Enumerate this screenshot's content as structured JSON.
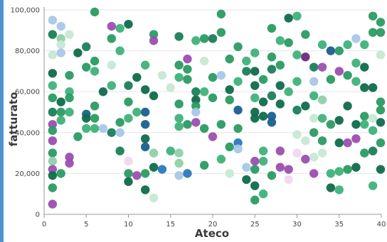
{
  "chart_data": {
    "type": "scatter",
    "title": "",
    "xlabel": "Ateco",
    "ylabel": "fatturato",
    "xlim": [
      0,
      40
    ],
    "ylim": [
      0,
      100000
    ],
    "x_ticks": [
      "0",
      "5",
      "10",
      "15",
      "20",
      "25",
      "30",
      "35",
      "40"
    ],
    "y_ticks": [
      "0",
      "20,000",
      "40,000",
      "60,000",
      "80,000",
      "100,000"
    ],
    "grid": "horizontal",
    "legend": "none",
    "points": [
      {
        "x": 1,
        "y": 95000,
        "color": "#a9c7e8"
      },
      {
        "x": 1,
        "y": 88000,
        "color": "#1a7f5a"
      },
      {
        "x": 1,
        "y": 78000,
        "color": "#c7e8d4"
      },
      {
        "x": 1,
        "y": 69000,
        "color": "#0f6b4a"
      },
      {
        "x": 1,
        "y": 63000,
        "color": "#3fb27a"
      },
      {
        "x": 1,
        "y": 57000,
        "color": "#2a9b62"
      },
      {
        "x": 1,
        "y": 50000,
        "color": "#1a7f5a"
      },
      {
        "x": 1,
        "y": 44000,
        "color": "#9b4fb0"
      },
      {
        "x": 1,
        "y": 41000,
        "color": "#2a9b62"
      },
      {
        "x": 1,
        "y": 36000,
        "color": "#9b4fb0"
      },
      {
        "x": 1,
        "y": 30000,
        "color": "#2a9b62"
      },
      {
        "x": 1,
        "y": 26000,
        "color": "#8fd1a8"
      },
      {
        "x": 1,
        "y": 22000,
        "color": "#9b4fb0"
      },
      {
        "x": 1,
        "y": 19000,
        "color": "#0f6b4a"
      },
      {
        "x": 1,
        "y": 13000,
        "color": "#2a9b62"
      },
      {
        "x": 1,
        "y": 5000,
        "color": "#9b4fb0"
      },
      {
        "x": 2,
        "y": 92000,
        "color": "#a9c7e8"
      },
      {
        "x": 2,
        "y": 86000,
        "color": "#8fd1a8"
      },
      {
        "x": 2,
        "y": 83000,
        "color": "#c7e8d4"
      },
      {
        "x": 2,
        "y": 79000,
        "color": "#a9c7e8"
      },
      {
        "x": 2,
        "y": 55000,
        "color": "#0f6b4a"
      },
      {
        "x": 2,
        "y": 50000,
        "color": "#2a9b62"
      },
      {
        "x": 2,
        "y": 46000,
        "color": "#3fb27a"
      },
      {
        "x": 2,
        "y": 20000,
        "color": "#2a9b62"
      },
      {
        "x": 3,
        "y": 88000,
        "color": "#c7e8d4"
      },
      {
        "x": 3,
        "y": 68000,
        "color": "#2a9b62"
      },
      {
        "x": 3,
        "y": 60000,
        "color": "#3fb27a"
      },
      {
        "x": 3,
        "y": 57000,
        "color": "#2a9b62"
      },
      {
        "x": 3,
        "y": 50000,
        "color": "#3fb27a"
      },
      {
        "x": 3,
        "y": 28000,
        "color": "#9b4fb0"
      },
      {
        "x": 3,
        "y": 25000,
        "color": "#9b4fb0"
      },
      {
        "x": 4,
        "y": 79000,
        "color": "#0f6b4a"
      },
      {
        "x": 4,
        "y": 38000,
        "color": "#2a9b62"
      },
      {
        "x": 5,
        "y": 82000,
        "color": "#1a7f5a"
      },
      {
        "x": 5,
        "y": 72000,
        "color": "#2a9b62"
      },
      {
        "x": 5,
        "y": 49000,
        "color": "#1a5f8f"
      },
      {
        "x": 5,
        "y": 47000,
        "color": "#0f6b4a"
      },
      {
        "x": 5,
        "y": 42000,
        "color": "#3fb27a"
      },
      {
        "x": 6,
        "y": 99000,
        "color": "#2a9b62"
      },
      {
        "x": 6,
        "y": 75000,
        "color": "#2a9b62"
      },
      {
        "x": 6,
        "y": 70000,
        "color": "#3fb27a"
      },
      {
        "x": 6,
        "y": 53000,
        "color": "#2a9b62"
      },
      {
        "x": 6,
        "y": 47000,
        "color": "#2a9b62"
      },
      {
        "x": 6,
        "y": 42000,
        "color": "#3fb27a"
      },
      {
        "x": 7,
        "y": 60000,
        "color": "#0f6b4a"
      },
      {
        "x": 7,
        "y": 42000,
        "color": "#a9c7e8"
      },
      {
        "x": 8,
        "y": 92000,
        "color": "#9b4fb0"
      },
      {
        "x": 8,
        "y": 86000,
        "color": "#2a9b62"
      },
      {
        "x": 8,
        "y": 73000,
        "color": "#c7e8d4"
      },
      {
        "x": 8,
        "y": 63000,
        "color": "#3fb27a"
      },
      {
        "x": 8,
        "y": 40000,
        "color": "#1a7f5a"
      },
      {
        "x": 9,
        "y": 91000,
        "color": "#3fb27a"
      },
      {
        "x": 9,
        "y": 80000,
        "color": "#3fb27a"
      },
      {
        "x": 9,
        "y": 45000,
        "color": "#2a9b62"
      },
      {
        "x": 9,
        "y": 40000,
        "color": "#a9c7e8"
      },
      {
        "x": 9,
        "y": 31000,
        "color": "#1a7f5a"
      },
      {
        "x": 10,
        "y": 93000,
        "color": "#0f6b4a"
      },
      {
        "x": 10,
        "y": 63000,
        "color": "#1a7f5a"
      },
      {
        "x": 10,
        "y": 55000,
        "color": "#2a9b62"
      },
      {
        "x": 10,
        "y": 47000,
        "color": "#3fb27a"
      },
      {
        "x": 10,
        "y": 26000,
        "color": "#f0d8ee"
      },
      {
        "x": 10,
        "y": 20000,
        "color": "#2a9b62"
      },
      {
        "x": 10,
        "y": 16000,
        "color": "#0f6b4a"
      },
      {
        "x": 11,
        "y": 67000,
        "color": "#0f6b4a"
      },
      {
        "x": 11,
        "y": 50000,
        "color": "#3fb27a"
      },
      {
        "x": 11,
        "y": 19000,
        "color": "#9b4fb0"
      },
      {
        "x": 12,
        "y": 73000,
        "color": "#3fb27a"
      },
      {
        "x": 12,
        "y": 61000,
        "color": "#0f6b4a"
      },
      {
        "x": 12,
        "y": 50000,
        "color": "#1a5f8f"
      },
      {
        "x": 12,
        "y": 44000,
        "color": "#1a5f8f"
      },
      {
        "x": 12,
        "y": 37000,
        "color": "#0f6b4a"
      },
      {
        "x": 12,
        "y": 33000,
        "color": "#1a5f8f"
      },
      {
        "x": 12,
        "y": 20000,
        "color": "#2a9b62"
      },
      {
        "x": 12,
        "y": 12000,
        "color": "#0f6b4a"
      },
      {
        "x": 13,
        "y": 88000,
        "color": "#2a9b62"
      },
      {
        "x": 13,
        "y": 85000,
        "color": "#9b4fb0"
      },
      {
        "x": 13,
        "y": 58000,
        "color": "#0f6b4a"
      },
      {
        "x": 13,
        "y": 30000,
        "color": "#8fd1a8"
      },
      {
        "x": 13,
        "y": 23000,
        "color": "#0f6b4a"
      },
      {
        "x": 13,
        "y": 8000,
        "color": "#c7e8d4"
      },
      {
        "x": 14,
        "y": 68000,
        "color": "#c7e8d4"
      },
      {
        "x": 14,
        "y": 22000,
        "color": "#2a78c0"
      },
      {
        "x": 15,
        "y": 62000,
        "color": "#c7e8d4"
      },
      {
        "x": 15,
        "y": 31000,
        "color": "#3fb27a"
      },
      {
        "x": 16,
        "y": 87000,
        "color": "#1a7f5a"
      },
      {
        "x": 16,
        "y": 73000,
        "color": "#2a9b62"
      },
      {
        "x": 16,
        "y": 67000,
        "color": "#3fb27a"
      },
      {
        "x": 16,
        "y": 54000,
        "color": "#2a9b62"
      },
      {
        "x": 16,
        "y": 47000,
        "color": "#3fb27a"
      },
      {
        "x": 16,
        "y": 43000,
        "color": "#3fb27a"
      },
      {
        "x": 16,
        "y": 30000,
        "color": "#8fd1a8"
      },
      {
        "x": 16,
        "y": 25000,
        "color": "#8fd1a8"
      },
      {
        "x": 16,
        "y": 19000,
        "color": "#a9c7e8"
      },
      {
        "x": 17,
        "y": 76000,
        "color": "#9b4fb0"
      },
      {
        "x": 17,
        "y": 71000,
        "color": "#2a9b62"
      },
      {
        "x": 17,
        "y": 66000,
        "color": "#2a9b62"
      },
      {
        "x": 17,
        "y": 44000,
        "color": "#2a9b62"
      },
      {
        "x": 17,
        "y": 20000,
        "color": "#2a78c0"
      },
      {
        "x": 18,
        "y": 85000,
        "color": "#3fb27a"
      },
      {
        "x": 18,
        "y": 60000,
        "color": "#1a7f5a"
      },
      {
        "x": 18,
        "y": 56000,
        "color": "#0f6b4a"
      },
      {
        "x": 18,
        "y": 53000,
        "color": "#2a9b62"
      },
      {
        "x": 18,
        "y": 50000,
        "color": "#a9c7e8"
      },
      {
        "x": 18,
        "y": 45000,
        "color": "#9b4fb0"
      },
      {
        "x": 19,
        "y": 86000,
        "color": "#2a9b62"
      },
      {
        "x": 19,
        "y": 75000,
        "color": "#c7e8d4"
      },
      {
        "x": 19,
        "y": 60000,
        "color": "#3fb27a"
      },
      {
        "x": 19,
        "y": 42000,
        "color": "#2a9b62"
      },
      {
        "x": 19,
        "y": 24000,
        "color": "#2a9b62"
      },
      {
        "x": 20,
        "y": 86000,
        "color": "#1a7f5a"
      },
      {
        "x": 20,
        "y": 67000,
        "color": "#2a9b62"
      },
      {
        "x": 20,
        "y": 57000,
        "color": "#2a9b62"
      },
      {
        "x": 20,
        "y": 38000,
        "color": "#9b4fb0"
      },
      {
        "x": 21,
        "y": 98000,
        "color": "#2a9b62"
      },
      {
        "x": 21,
        "y": 89000,
        "color": "#2a9b62"
      },
      {
        "x": 21,
        "y": 68000,
        "color": "#a9c7e8"
      },
      {
        "x": 21,
        "y": 44000,
        "color": "#2a9b62"
      },
      {
        "x": 21,
        "y": 27000,
        "color": "#3fb27a"
      },
      {
        "x": 22,
        "y": 76000,
        "color": "#2a9b62"
      },
      {
        "x": 22,
        "y": 61000,
        "color": "#0f6b4a"
      },
      {
        "x": 22,
        "y": 56000,
        "color": "#2a9b62"
      },
      {
        "x": 22,
        "y": 33000,
        "color": "#2a9b62"
      },
      {
        "x": 22,
        "y": 20000,
        "color": "#c7e8d4"
      },
      {
        "x": 23,
        "y": 82000,
        "color": "#2a9b62"
      },
      {
        "x": 23,
        "y": 65000,
        "color": "#3fb27a"
      },
      {
        "x": 23,
        "y": 51000,
        "color": "#1a5f8f"
      },
      {
        "x": 23,
        "y": 42000,
        "color": "#2a9b62"
      },
      {
        "x": 23,
        "y": 35000,
        "color": "#2a78c0"
      },
      {
        "x": 23,
        "y": 32000,
        "color": "#a9c7e8"
      },
      {
        "x": 24,
        "y": 75000,
        "color": "#3fb27a"
      },
      {
        "x": 24,
        "y": 70000,
        "color": "#1a7f5a"
      },
      {
        "x": 24,
        "y": 23000,
        "color": "#a9c7e8"
      },
      {
        "x": 24,
        "y": 17000,
        "color": "#0f6b4a"
      },
      {
        "x": 25,
        "y": 79000,
        "color": "#3fb27a"
      },
      {
        "x": 25,
        "y": 70000,
        "color": "#0f6b4a"
      },
      {
        "x": 25,
        "y": 63000,
        "color": "#0f6b4a"
      },
      {
        "x": 25,
        "y": 57000,
        "color": "#3fb27a"
      },
      {
        "x": 25,
        "y": 50000,
        "color": "#0f6b4a"
      },
      {
        "x": 25,
        "y": 47000,
        "color": "#0f6b4a"
      },
      {
        "x": 25,
        "y": 26000,
        "color": "#9b4fb0"
      },
      {
        "x": 25,
        "y": 22000,
        "color": "#2a9b62"
      },
      {
        "x": 25,
        "y": 14000,
        "color": "#0f6b4a"
      },
      {
        "x": 25,
        "y": 7000,
        "color": "#2a9b62"
      },
      {
        "x": 26,
        "y": 66000,
        "color": "#2a9b62"
      },
      {
        "x": 26,
        "y": 55000,
        "color": "#0f6b4a"
      },
      {
        "x": 26,
        "y": 48000,
        "color": "#0f6b4a"
      },
      {
        "x": 26,
        "y": 31000,
        "color": "#3fb27a"
      },
      {
        "x": 26,
        "y": 26000,
        "color": "#3fb27a"
      },
      {
        "x": 26,
        "y": 10000,
        "color": "#3fb27a"
      },
      {
        "x": 27,
        "y": 91000,
        "color": "#2a9b62"
      },
      {
        "x": 27,
        "y": 77000,
        "color": "#2a9b62"
      },
      {
        "x": 27,
        "y": 71000,
        "color": "#1a7f5a"
      },
      {
        "x": 27,
        "y": 58000,
        "color": "#1a7f5a"
      },
      {
        "x": 27,
        "y": 48000,
        "color": "#1a5f8f"
      },
      {
        "x": 27,
        "y": 45000,
        "color": "#1a5f8f"
      },
      {
        "x": 27,
        "y": 19000,
        "color": "#2a9b62"
      },
      {
        "x": 28,
        "y": 85000,
        "color": "#3fb27a"
      },
      {
        "x": 28,
        "y": 73000,
        "color": "#2a9b62"
      },
      {
        "x": 28,
        "y": 63000,
        "color": "#0f6b4a"
      },
      {
        "x": 28,
        "y": 54000,
        "color": "#0f6b4a"
      },
      {
        "x": 28,
        "y": 31000,
        "color": "#9b4fb0"
      },
      {
        "x": 28,
        "y": 23000,
        "color": "#9b4fb0"
      },
      {
        "x": 29,
        "y": 96000,
        "color": "#0f6b4a"
      },
      {
        "x": 29,
        "y": 84000,
        "color": "#2a9b62"
      },
      {
        "x": 29,
        "y": 60000,
        "color": "#3fb27a"
      },
      {
        "x": 29,
        "y": 22000,
        "color": "#9b4fb0"
      },
      {
        "x": 29,
        "y": 17000,
        "color": "#f0d8ee"
      },
      {
        "x": 30,
        "y": 97000,
        "color": "#3fb27a"
      },
      {
        "x": 30,
        "y": 78000,
        "color": "#3fb27a"
      },
      {
        "x": 30,
        "y": 65000,
        "color": "#3fb27a"
      },
      {
        "x": 30,
        "y": 51000,
        "color": "#1a7f5a"
      },
      {
        "x": 30,
        "y": 39000,
        "color": "#c7e8d4"
      },
      {
        "x": 30,
        "y": 30000,
        "color": "#f0d8ee"
      },
      {
        "x": 31,
        "y": 88000,
        "color": "#2a9b62"
      },
      {
        "x": 31,
        "y": 77000,
        "color": "#6a2a80"
      },
      {
        "x": 31,
        "y": 53000,
        "color": "#0f6b4a"
      },
      {
        "x": 31,
        "y": 36000,
        "color": "#c7e8d4"
      },
      {
        "x": 31,
        "y": 27000,
        "color": "#9b4fb0"
      },
      {
        "x": 32,
        "y": 72000,
        "color": "#1a7f5a"
      },
      {
        "x": 32,
        "y": 65000,
        "color": "#a9c7e8"
      },
      {
        "x": 32,
        "y": 58000,
        "color": "#3fb27a"
      },
      {
        "x": 32,
        "y": 47000,
        "color": "#c7e8d4"
      },
      {
        "x": 32,
        "y": 40000,
        "color": "#2a9b62"
      },
      {
        "x": 32,
        "y": 28000,
        "color": "#c7e8d4"
      },
      {
        "x": 32,
        "y": 20000,
        "color": "#9b4fb0"
      },
      {
        "x": 33,
        "y": 83000,
        "color": "#3fb27a"
      },
      {
        "x": 33,
        "y": 72000,
        "color": "#9b4fb0"
      },
      {
        "x": 33,
        "y": 56000,
        "color": "#8fd1a8"
      },
      {
        "x": 33,
        "y": 47000,
        "color": "#3fb27a"
      },
      {
        "x": 33,
        "y": 36000,
        "color": "#2a9b62"
      },
      {
        "x": 33,
        "y": 30000,
        "color": "#c7e8d4"
      },
      {
        "x": 34,
        "y": 80000,
        "color": "#1a5f8f"
      },
      {
        "x": 34,
        "y": 66000,
        "color": "#2a9b62"
      },
      {
        "x": 34,
        "y": 44000,
        "color": "#2a9b62"
      },
      {
        "x": 34,
        "y": 20000,
        "color": "#3fb27a"
      },
      {
        "x": 34,
        "y": 13000,
        "color": "#0f6b4a"
      },
      {
        "x": 35,
        "y": 80000,
        "color": "#2a9b62"
      },
      {
        "x": 35,
        "y": 70000,
        "color": "#9b4fb0"
      },
      {
        "x": 35,
        "y": 46000,
        "color": "#0f6b4a"
      },
      {
        "x": 35,
        "y": 35000,
        "color": "#0f6b4a"
      },
      {
        "x": 35,
        "y": 21000,
        "color": "#3fb27a"
      },
      {
        "x": 35,
        "y": 12000,
        "color": "#3fb27a"
      },
      {
        "x": 36,
        "y": 83000,
        "color": "#3fb27a"
      },
      {
        "x": 36,
        "y": 68000,
        "color": "#2a9b62"
      },
      {
        "x": 36,
        "y": 53000,
        "color": "#0f6b4a"
      },
      {
        "x": 36,
        "y": 35000,
        "color": "#9b4fb0"
      },
      {
        "x": 36,
        "y": 22000,
        "color": "#2a9b62"
      },
      {
        "x": 37,
        "y": 86000,
        "color": "#a9c7e8"
      },
      {
        "x": 37,
        "y": 74000,
        "color": "#3fb27a"
      },
      {
        "x": 37,
        "y": 65000,
        "color": "#3fb27a"
      },
      {
        "x": 37,
        "y": 44000,
        "color": "#0f6b4a"
      },
      {
        "x": 37,
        "y": 37000,
        "color": "#9b4fb0"
      },
      {
        "x": 37,
        "y": 23000,
        "color": "#0f6b4a"
      },
      {
        "x": 38,
        "y": 83000,
        "color": "#3fb27a"
      },
      {
        "x": 38,
        "y": 72000,
        "color": "#0f6b4a"
      },
      {
        "x": 38,
        "y": 62000,
        "color": "#0f6b4a"
      },
      {
        "x": 38,
        "y": 48000,
        "color": "#2a9b62"
      },
      {
        "x": 38,
        "y": 44000,
        "color": "#3fb27a"
      },
      {
        "x": 38,
        "y": 30000,
        "color": "#2a9b62"
      },
      {
        "x": 39,
        "y": 97000,
        "color": "#2a9b62"
      },
      {
        "x": 39,
        "y": 89000,
        "color": "#2a9b62"
      },
      {
        "x": 39,
        "y": 62000,
        "color": "#0f6b4a"
      },
      {
        "x": 39,
        "y": 47000,
        "color": "#c7e8d4"
      },
      {
        "x": 39,
        "y": 41000,
        "color": "#3fb27a"
      },
      {
        "x": 39,
        "y": 31000,
        "color": "#1a7f5a"
      },
      {
        "x": 39,
        "y": 14000,
        "color": "#3fb27a"
      },
      {
        "x": 40,
        "y": 94000,
        "color": "#2a9b62"
      },
      {
        "x": 40,
        "y": 89000,
        "color": "#2a9b62"
      },
      {
        "x": 40,
        "y": 78000,
        "color": "#c7e8d4"
      },
      {
        "x": 40,
        "y": 55000,
        "color": "#2a9b62"
      },
      {
        "x": 40,
        "y": 51000,
        "color": "#2a9b62"
      },
      {
        "x": 40,
        "y": 45000,
        "color": "#0f6b4a"
      },
      {
        "x": 40,
        "y": 35000,
        "color": "#2a9b62"
      },
      {
        "x": 40,
        "y": 22000,
        "color": "#0f6b4a"
      }
    ]
  }
}
